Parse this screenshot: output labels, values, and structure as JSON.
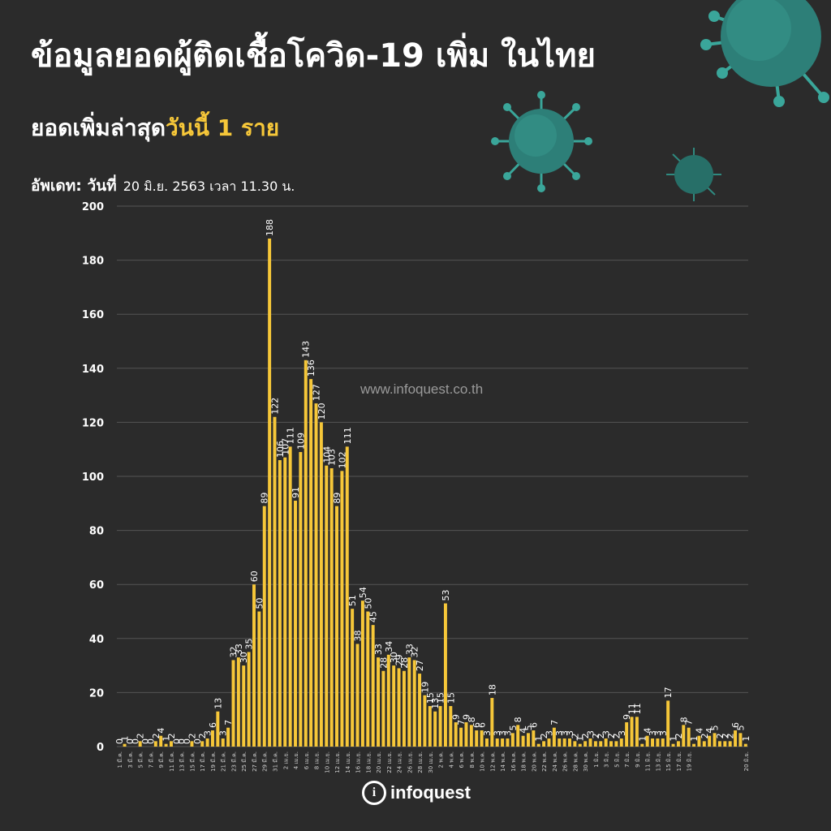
{
  "header": {
    "title": "ข้อมูลยอดผู้ติดเชื้อโควิด-19 เพิ่ม ในไทย",
    "subtitle_lead": "ยอดเพิ่มล่าสุด",
    "subtitle_highlight": "วันนี้ 1 ราย",
    "update_label": "อัพเดท: วันที่",
    "update_value": "20 มิ.ย. 2563 เวลา 11.30 น."
  },
  "watermark": "www.infoquest.co.th",
  "logo": {
    "mark": "i",
    "text": "infoquest"
  },
  "colors": {
    "bar": "#f6c739",
    "background": "#2b2b2b",
    "grid": "#555555",
    "text": "#ffffff"
  },
  "icons": [
    "virus-icon"
  ],
  "chart_data": {
    "type": "bar",
    "title": "",
    "xlabel": "",
    "ylabel": "",
    "ylim": [
      0,
      200
    ],
    "yticks": [
      "0",
      "20",
      "40",
      "60",
      "80",
      "100",
      "120",
      "140",
      "160",
      "180",
      "200"
    ],
    "grid": true,
    "x_tick_labels": [
      "1 มี.ค.",
      "3 มี.ค.",
      "5 มี.ค.",
      "7 มี.ค.",
      "9 มี.ค.",
      "11 มี.ค.",
      "13 มี.ค.",
      "15 มี.ค.",
      "17 มี.ค.",
      "19 มี.ค.",
      "21 มี.ค.",
      "23 มี.ค.",
      "25 มี.ค.",
      "27 มี.ค.",
      "29 มี.ค.",
      "31 มี.ค.",
      "2 เม.ย.",
      "4 เม.ย.",
      "6 เม.ย.",
      "8 เม.ย.",
      "10 เม.ย.",
      "12 เม.ย.",
      "14 เม.ย.",
      "16 เม.ย.",
      "18 เม.ย.",
      "20 เม.ย.",
      "22 เม.ย.",
      "24 เม.ย.",
      "26 เม.ย.",
      "28 เม.ย.",
      "30 เม.ย.",
      "2 พ.ค.",
      "4 พ.ค.",
      "6 พ.ค.",
      "8 พ.ค.",
      "10 พ.ค.",
      "12 พ.ค.",
      "14 พ.ค.",
      "16 พ.ค.",
      "18 พ.ค.",
      "20 พ.ค.",
      "22 พ.ค.",
      "24 พ.ค.",
      "26 พ.ค.",
      "28 พ.ค.",
      "30 พ.ค.",
      "1 มิ.ย.",
      "3 มิ.ย.",
      "5 มิ.ย.",
      "7 มิ.ย.",
      "9 มิ.ย.",
      "11 มิ.ย.",
      "13 มิ.ย.",
      "15 มิ.ย.",
      "17 มิ.ย.",
      "19 มิ.ย.",
      "20 มิ.ย."
    ],
    "values": [
      0,
      1,
      0,
      0,
      2,
      0,
      0,
      2,
      4,
      1,
      2,
      0,
      0,
      0,
      2,
      0,
      2,
      3,
      6,
      13,
      3,
      7,
      32,
      33,
      30,
      35,
      60,
      50,
      89,
      188,
      122,
      106,
      107,
      111,
      91,
      109,
      143,
      136,
      127,
      120,
      104,
      103,
      89,
      102,
      111,
      51,
      38,
      54,
      50,
      45,
      33,
      28,
      34,
      30,
      29,
      28,
      33,
      32,
      27,
      19,
      15,
      13,
      15,
      53,
      15,
      9,
      7,
      9,
      8,
      6,
      6,
      3,
      18,
      3,
      3,
      3,
      5,
      8,
      4,
      5,
      6,
      1,
      2,
      3,
      7,
      3,
      3,
      3,
      2,
      1,
      2,
      3,
      2,
      2,
      3,
      2,
      2,
      3,
      9,
      11,
      11,
      1,
      4,
      3,
      3,
      3,
      17,
      1,
      2,
      8,
      7,
      1,
      4,
      2,
      4,
      5,
      2,
      2,
      2,
      6,
      5,
      1
    ]
  }
}
